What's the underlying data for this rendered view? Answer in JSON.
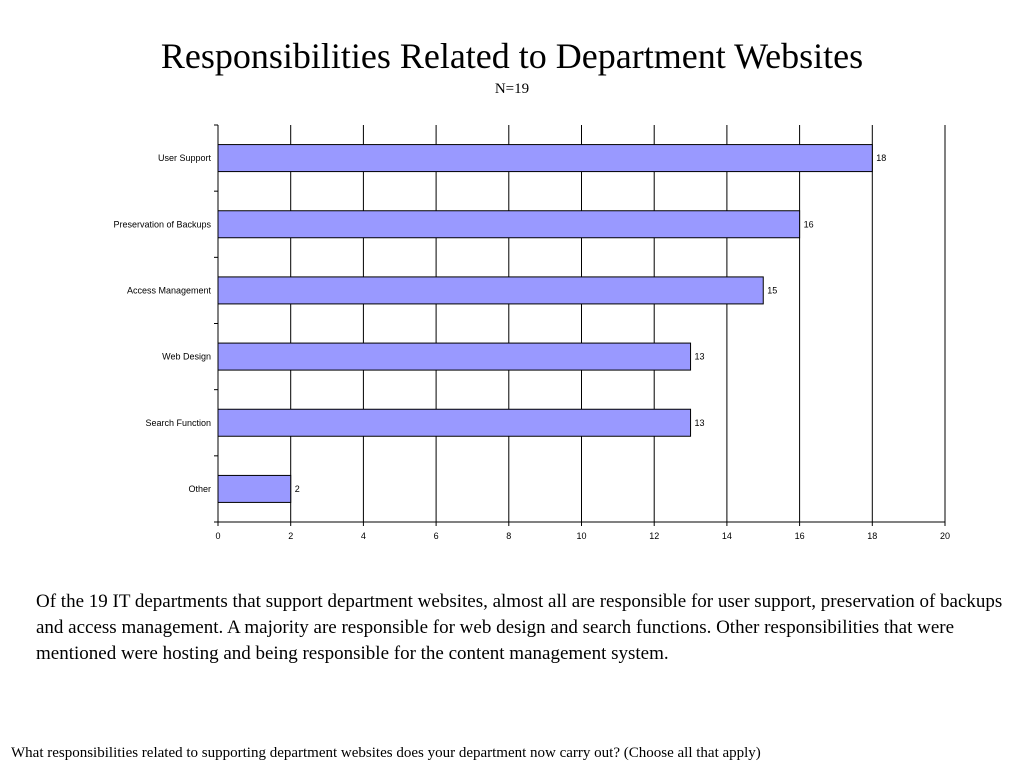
{
  "slide": {
    "title": "Responsibilities Related to Department Websites",
    "subtitle": "N=19",
    "summary": "Of the 19 IT departments that support department websites, almost all are responsible for user support, preservation of backups and access management.  A majority are responsible for web design and search functions.  Other responsibilities that were mentioned were hosting and being responsible for the content management system.",
    "question": "What responsibilities related to supporting department websites does your department now carry out? (Choose all that apply)"
  },
  "chart_data": {
    "type": "bar",
    "orientation": "horizontal",
    "categories": [
      "User Support",
      "Preservation of Backups",
      "Access Management",
      "Web Design",
      "Search Function",
      "Other"
    ],
    "values": [
      18,
      16,
      15,
      13,
      13,
      2
    ],
    "data_labels": [
      "18",
      "16",
      "15",
      "13",
      "13",
      "2"
    ],
    "xlim": [
      0,
      20
    ],
    "xticks": [
      0,
      2,
      4,
      6,
      8,
      10,
      12,
      14,
      16,
      18,
      20
    ],
    "xtick_labels": [
      "0",
      "2",
      "4",
      "6",
      "8",
      "10",
      "12",
      "14",
      "16",
      "18",
      "20"
    ],
    "grid": "vertical",
    "legend": "none",
    "colors": {
      "bar_fill": "#9999ff",
      "bar_stroke": "#000000",
      "grid": "#000000"
    }
  }
}
